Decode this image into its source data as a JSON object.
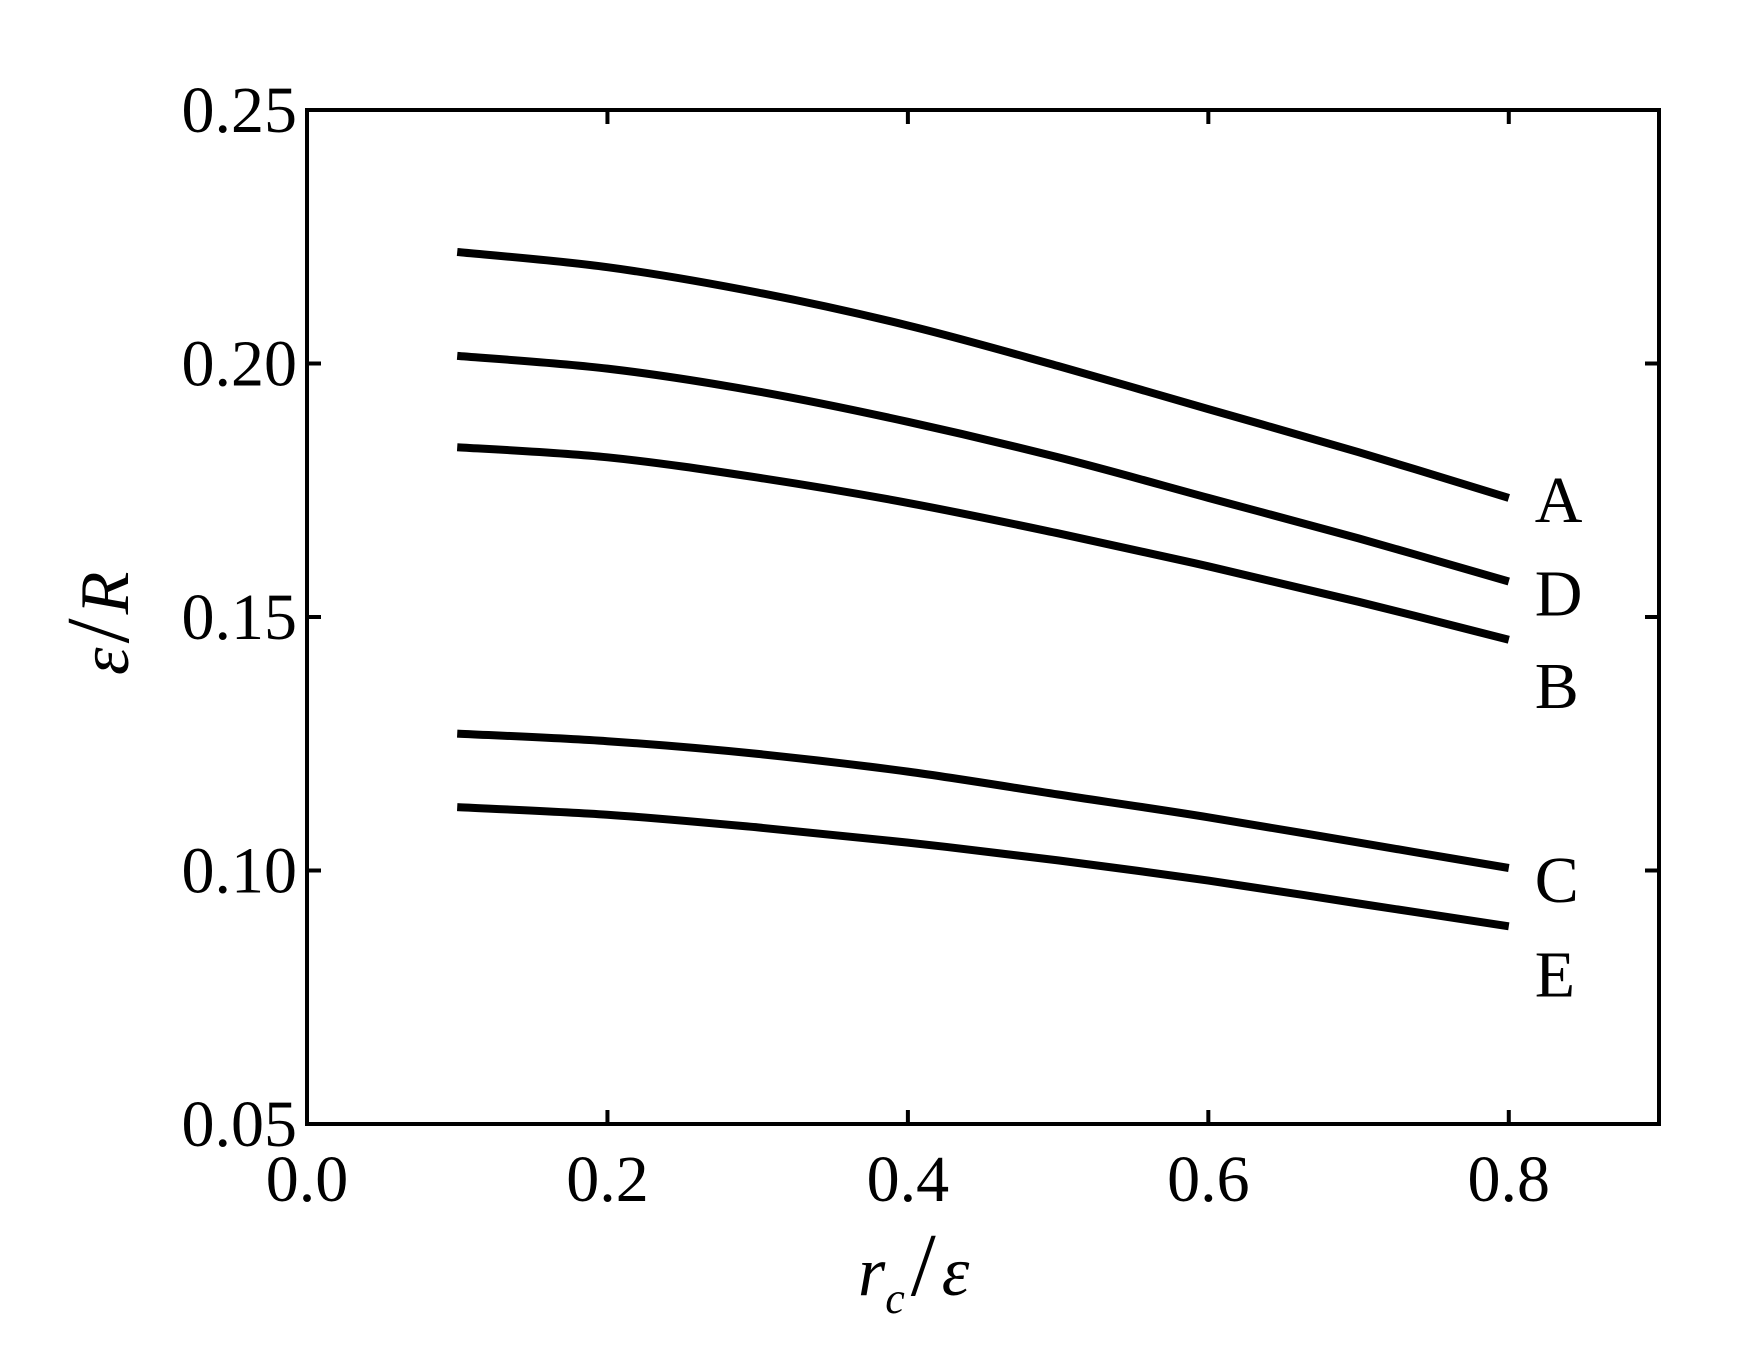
{
  "chart_data": {
    "type": "line",
    "title": "",
    "xlabel": {
      "main": "r",
      "sub": "c",
      "sep": "/",
      "denom": "ε"
    },
    "ylabel": {
      "num": "ε",
      "sep": "/",
      "denom": "R"
    },
    "xlim": [
      0.0,
      0.9
    ],
    "ylim": [
      0.05,
      0.25
    ],
    "xticks": [
      0.0,
      0.2,
      0.4,
      0.6,
      0.8
    ],
    "xtick_labels": [
      "0.0",
      "0.2",
      "0.4",
      "0.6",
      "0.8"
    ],
    "yticks": [
      0.05,
      0.1,
      0.15,
      0.2,
      0.25
    ],
    "ytick_labels": [
      "0.05",
      "0.10",
      "0.15",
      "0.20",
      "0.25"
    ],
    "grid": false,
    "line_color": "#000000",
    "x": [
      0.1,
      0.2,
      0.3,
      0.4,
      0.5,
      0.6,
      0.7,
      0.8
    ],
    "series": [
      {
        "label": "A",
        "values": [
          0.222,
          0.219,
          0.214,
          0.2075,
          0.1995,
          0.191,
          0.1825,
          0.1735
        ]
      },
      {
        "label": "D",
        "values": [
          0.2015,
          0.199,
          0.1945,
          0.1885,
          0.1815,
          0.1735,
          0.1655,
          0.157
        ]
      },
      {
        "label": "B",
        "values": [
          0.1835,
          0.1815,
          0.1775,
          0.1725,
          0.1665,
          0.16,
          0.153,
          0.1455
        ]
      },
      {
        "label": "C",
        "values": [
          0.127,
          0.1255,
          0.123,
          0.1195,
          0.115,
          0.1105,
          0.1055,
          0.1005
        ]
      },
      {
        "label": "E",
        "values": [
          0.1125,
          0.111,
          0.1085,
          0.1055,
          0.102,
          0.098,
          0.0935,
          0.089
        ]
      }
    ]
  }
}
